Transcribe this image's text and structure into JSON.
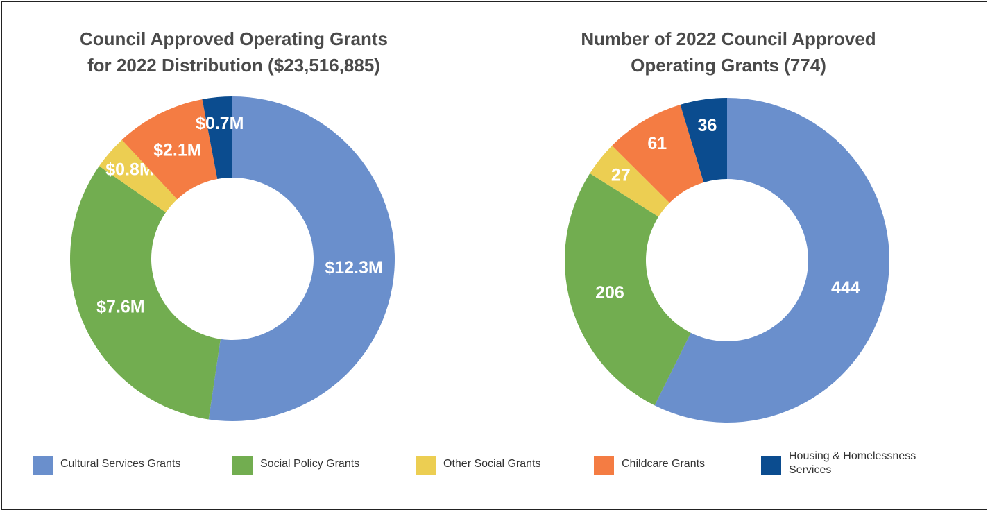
{
  "legend": [
    {
      "label": "Cultural Services Grants",
      "color": "#6a8fcc"
    },
    {
      "label": "Social Policy Grants",
      "color": "#72ad50"
    },
    {
      "label": "Other Social Grants",
      "color": "#ecce52"
    },
    {
      "label": "Childcare Grants",
      "color": "#f47c43"
    },
    {
      "label": "Housing & Homelessness Services",
      "color": "#0b4c8f"
    }
  ],
  "chart_data": [
    {
      "type": "pie",
      "title": "Council Approved Operating Grants\nfor 2022 Distribution ($23,516,885)",
      "categories": [
        "Cultural Services Grants",
        "Social Policy Grants",
        "Other Social Grants",
        "Childcare Grants",
        "Housing & Homelessness Services"
      ],
      "values": [
        12.3,
        7.6,
        0.8,
        2.1,
        0.7
      ],
      "labels": [
        "$12.3M",
        "$7.6M",
        "$0.8M",
        "$2.1M",
        "$0.7M"
      ],
      "colors": [
        "#6a8fcc",
        "#72ad50",
        "#ecce52",
        "#f47c43",
        "#0b4c8f"
      ],
      "donut": true
    },
    {
      "type": "pie",
      "title": "Number of 2022 Council Approved\nOperating Grants (774)",
      "categories": [
        "Cultural Services Grants",
        "Social Policy Grants",
        "Other Social Grants",
        "Childcare Grants",
        "Housing & Homelessness Services"
      ],
      "values": [
        444,
        206,
        27,
        61,
        36
      ],
      "labels": [
        "444",
        "206",
        "27",
        "61",
        "36"
      ],
      "colors": [
        "#6a8fcc",
        "#72ad50",
        "#ecce52",
        "#f47c43",
        "#0b4c8f"
      ],
      "donut": true
    }
  ]
}
